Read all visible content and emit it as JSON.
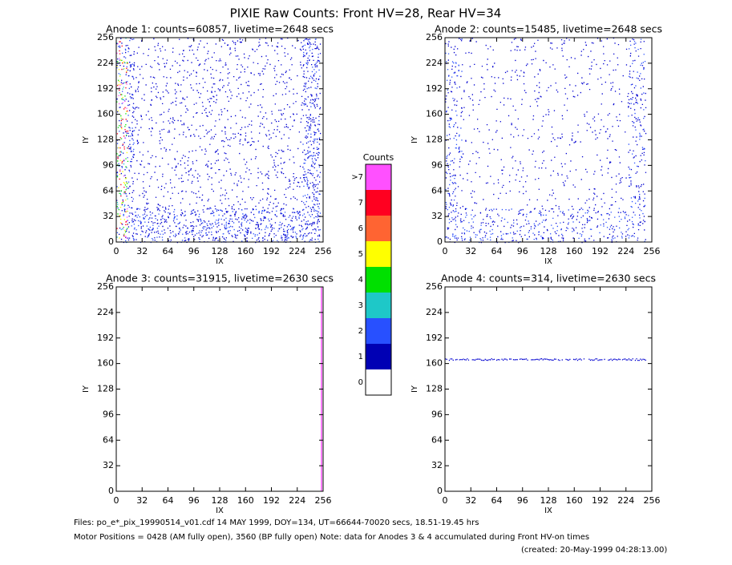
{
  "title": "PIXIE Raw Counts:  Front HV=28, Rear HV=34",
  "chart_data": [
    {
      "type": "heatmap",
      "title": "Anode 1: counts=60857, livetime=2648 secs",
      "xlabel": "IX",
      "ylabel": "IY",
      "xlim": [
        0,
        256
      ],
      "ylim": [
        0,
        256
      ],
      "xticks": [
        0,
        32,
        64,
        96,
        128,
        160,
        192,
        224,
        256
      ],
      "yticks": [
        0,
        32,
        64,
        96,
        128,
        160,
        192,
        224,
        256
      ]
    },
    {
      "type": "heatmap",
      "title": "Anode 2: counts=15485, livetime=2648 secs",
      "xlabel": "IX",
      "ylabel": "IY",
      "xlim": [
        0,
        256
      ],
      "ylim": [
        0,
        256
      ],
      "xticks": [
        0,
        32,
        64,
        96,
        128,
        160,
        192,
        224,
        256
      ],
      "yticks": [
        0,
        32,
        64,
        96,
        128,
        160,
        192,
        224,
        256
      ]
    },
    {
      "type": "heatmap",
      "title": "Anode 3: counts=31915, livetime=2630 secs",
      "xlabel": "IX",
      "ylabel": "IY",
      "xlim": [
        0,
        256
      ],
      "ylim": [
        0,
        256
      ],
      "xticks": [
        0,
        32,
        64,
        96,
        128,
        160,
        192,
        224,
        256
      ],
      "yticks": [
        0,
        32,
        64,
        96,
        128,
        160,
        192,
        224,
        256
      ]
    },
    {
      "type": "heatmap",
      "title": "Anode 4: counts=314, livetime=2630 secs",
      "xlabel": "IX",
      "ylabel": "IY",
      "xlim": [
        0,
        256
      ],
      "ylim": [
        0,
        256
      ],
      "xticks": [
        0,
        32,
        64,
        96,
        128,
        160,
        192,
        224,
        256
      ],
      "yticks": [
        0,
        32,
        64,
        96,
        128,
        160,
        192,
        224,
        256
      ]
    },
    {
      "type": "colorbar",
      "title": "Counts",
      "categories": [
        "0",
        "1",
        "2",
        "3",
        "4",
        "5",
        "6",
        "7",
        ">7"
      ],
      "colors": [
        "#ffffff",
        "#0000b4",
        "#2850ff",
        "#1ec8c8",
        "#00e000",
        "#ffff00",
        "#ff6432",
        "#ff0020",
        "#ff50ff"
      ]
    }
  ],
  "footer": [
    "Files: po_e*_pix_19990514_v01.cdf    14 MAY 1999, DOY=134, UT=66644-70020 secs, 18.51-19.45 hrs",
    "Motor Positions = 0428 (AM fully open), 3560 (BP fully open)    Note: data for Anodes 3 & 4 accumulated during Front HV-on times",
    "(created: 20-May-1999 04:28:13.00)"
  ]
}
